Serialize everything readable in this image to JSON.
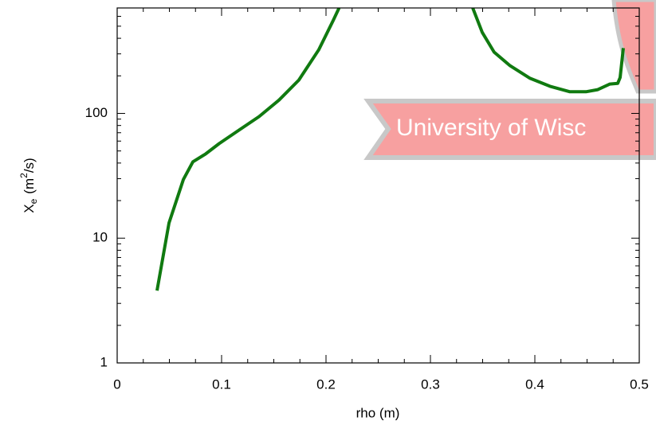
{
  "chart_data": {
    "type": "line",
    "x_label": "rho  (m)",
    "y_label": [
      "X",
      "e",
      "(m",
      "2",
      "/s)"
    ],
    "watermark": "University of Wisc",
    "x": [
      0.0382,
      0.0496,
      0.0634,
      0.0725,
      0.0847,
      0.0977,
      0.1168,
      0.1359,
      0.155,
      0.174,
      0.193,
      0.2069,
      0.2125,
      0.28,
      0.3405,
      0.3496,
      0.361,
      0.3763,
      0.3954,
      0.4145,
      0.4336,
      0.4489,
      0.4603,
      0.4718,
      0.4794,
      0.4817,
      0.4847
    ],
    "series": [
      {
        "color": "#107a10",
        "values": [
          3.8,
          13.2,
          29.6,
          40.9,
          47.3,
          57.3,
          73.5,
          94.3,
          128,
          185,
          323,
          556,
          700,
          null,
          700,
          446,
          310,
          241,
          191,
          165,
          149,
          149,
          155,
          172,
          174,
          194,
          334
        ]
      }
    ],
    "xlim": [
      0,
      0.5
    ],
    "xticks": [
      0,
      0.1,
      0.2,
      0.3,
      0.4,
      0.5
    ],
    "ylim": [
      1,
      700
    ],
    "yticks": [
      1,
      10,
      100
    ],
    "log_y": true
  }
}
